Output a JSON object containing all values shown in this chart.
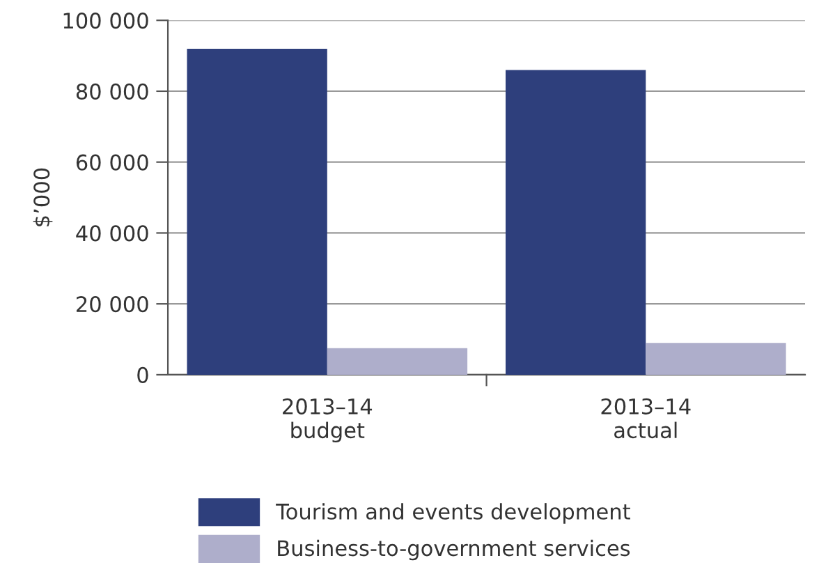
{
  "chart_data": {
    "type": "bar",
    "ylabel": "$’000",
    "categories": [
      "2013–14\nbudget",
      "2013–14\nactual"
    ],
    "series": [
      {
        "name": "Tourism and events development",
        "color": "#2e3f7c",
        "values": [
          92000,
          86000
        ]
      },
      {
        "name": "Business-to-government services",
        "color": "#aeaecb",
        "values": [
          7500,
          9000
        ]
      }
    ],
    "ylim": [
      0,
      100000
    ],
    "yticks": [
      {
        "value": 0,
        "label": "0"
      },
      {
        "value": 20000,
        "label": "20 000"
      },
      {
        "value": 40000,
        "label": "40 000"
      },
      {
        "value": 60000,
        "label": "60 000"
      },
      {
        "value": 80000,
        "label": "80 000"
      },
      {
        "value": 100000,
        "label": "100 000"
      }
    ],
    "grid": "y",
    "legend": "bottom"
  }
}
